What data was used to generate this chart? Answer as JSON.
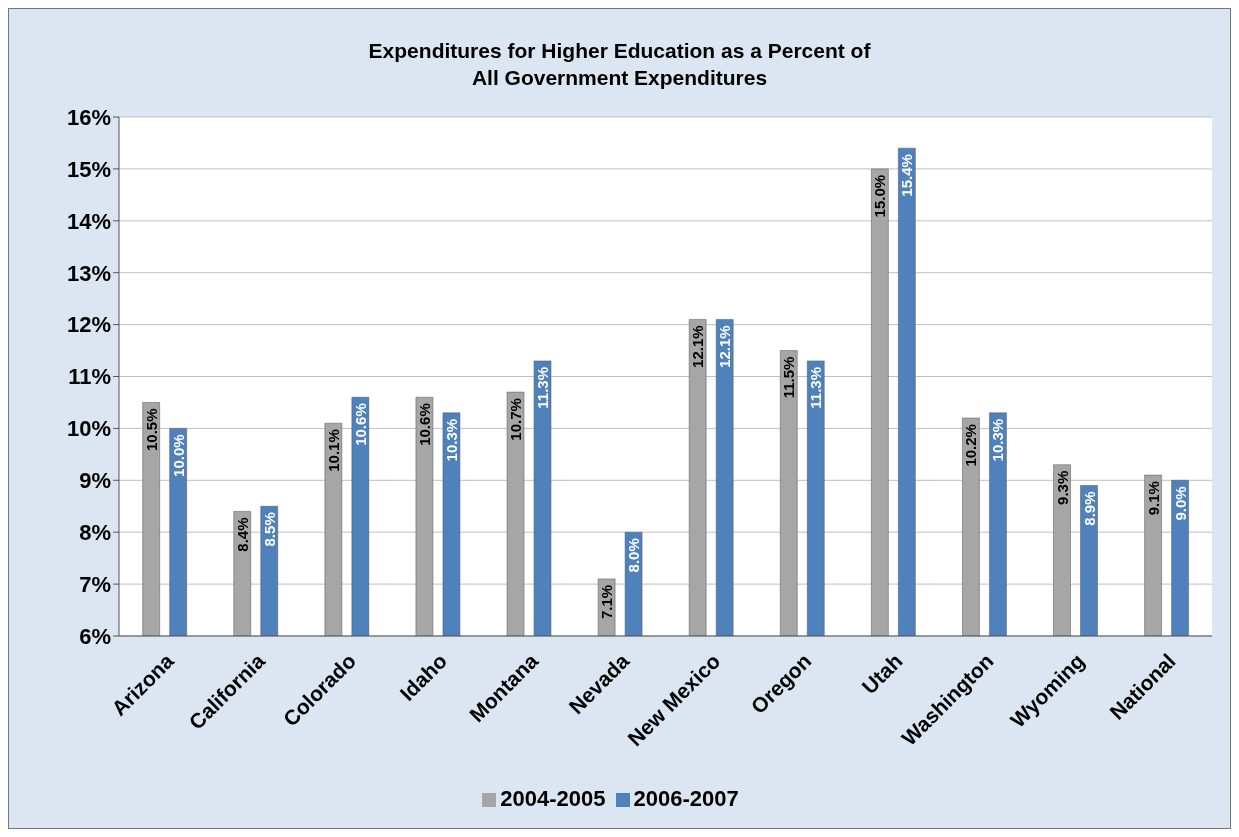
{
  "chart_data": {
    "type": "bar",
    "title": "Expenditures for Higher Education as a Percent of\nAll Government Expenditures",
    "categories": [
      "Arizona",
      "California",
      "Colorado",
      "Idaho",
      "Montana",
      "Nevada",
      "New Mexico",
      "Oregon",
      "Utah",
      "Washington",
      "Wyoming",
      "National"
    ],
    "series": [
      {
        "name": "2004-2005",
        "color": "#a6a6a6",
        "values": [
          10.5,
          8.4,
          10.1,
          10.6,
          10.7,
          7.1,
          12.1,
          11.5,
          15.0,
          10.2,
          9.3,
          9.1
        ],
        "value_labels": [
          "10.5%",
          "8.4%",
          "10.1%",
          "10.6%",
          "10.7%",
          "7.1%",
          "12.1%",
          "11.5%",
          "15.0%",
          "10.2%",
          "9.3%",
          "9.1%"
        ]
      },
      {
        "name": "2006-2007",
        "color": "#4f81bd",
        "values": [
          10.0,
          8.5,
          10.6,
          10.3,
          11.3,
          8.0,
          12.1,
          11.3,
          15.4,
          10.3,
          8.9,
          9.0
        ],
        "value_labels": [
          "10.0%",
          "8.5%",
          "10.6%",
          "10.3%",
          "11.3%",
          "8.0%",
          "12.1%",
          "11.3%",
          "15.4%",
          "10.3%",
          "8.9%",
          "9.0%"
        ]
      }
    ],
    "ylim": [
      6,
      16
    ],
    "yticks": [
      {
        "value": 6,
        "label": "6%"
      },
      {
        "value": 7,
        "label": "7%"
      },
      {
        "value": 8,
        "label": "8%"
      },
      {
        "value": 9,
        "label": "9%"
      },
      {
        "value": 10,
        "label": "10%"
      },
      {
        "value": 11,
        "label": "11%"
      },
      {
        "value": 12,
        "label": "12%"
      },
      {
        "value": 13,
        "label": "13%"
      },
      {
        "value": 14,
        "label": "14%"
      },
      {
        "value": 15,
        "label": "15%"
      },
      {
        "value": 16,
        "label": "16%"
      }
    ],
    "grid": "y",
    "legend": "bottom"
  }
}
